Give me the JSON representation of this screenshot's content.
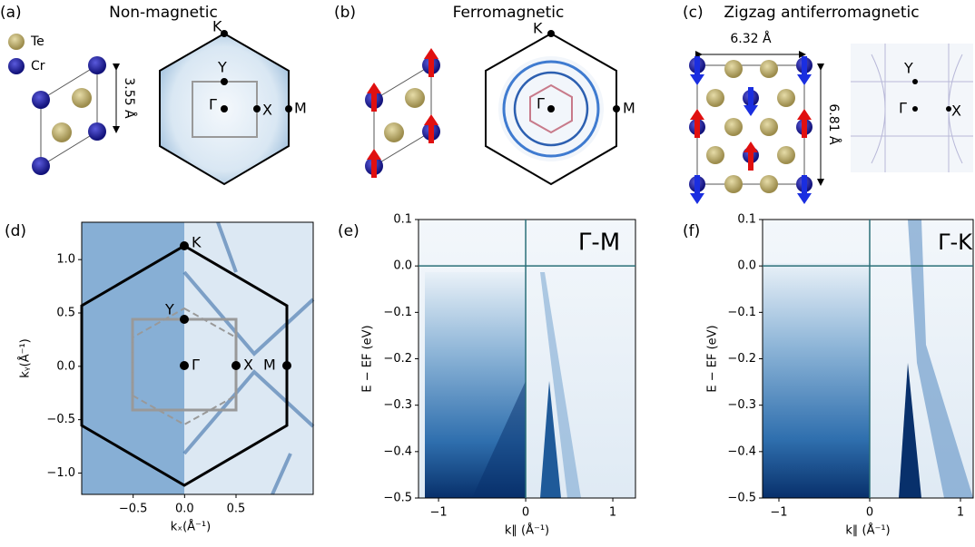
{
  "panels": {
    "a": {
      "label": "(a)",
      "title": "Non-magnetic",
      "legend": [
        "Te",
        "Cr"
      ],
      "dimension": "3.55 Å",
      "points": [
        "K",
        "Y",
        "Γ",
        "X",
        "M"
      ]
    },
    "b": {
      "label": "(b)",
      "title": "Ferromagnetic",
      "points": [
        "K",
        "Γ",
        "M"
      ]
    },
    "c": {
      "label": "(c)",
      "title": "Zigzag antiferromagnetic",
      "dimensions": [
        "6.32 Å",
        "6.81 Å"
      ],
      "points": [
        "Y",
        "Γ",
        "X"
      ]
    },
    "d": {
      "label": "(d)",
      "xlabel": "kₓ(Å⁻¹)",
      "ylabel": "kᵧ(Å⁻¹)",
      "xlim": [
        -1.0,
        1.25
      ],
      "ylim": [
        -1.2,
        1.35
      ],
      "xticks": [
        {
          "value": -0.5,
          "label": "−0.5"
        },
        {
          "value": 0,
          "label": "0.0"
        },
        0.5
      ],
      "yticks": [
        {
          "value": 1,
          "label": "1.0"
        },
        0.5,
        {
          "value": 0,
          "label": "0.0"
        },
        {
          "value": -0.5,
          "label": "−0.5"
        },
        {
          "value": -1,
          "label": "−1.0"
        }
      ],
      "points": [
        "K",
        "Y",
        "Γ",
        "X",
        "M"
      ]
    },
    "e": {
      "label": "(e)",
      "title": "Γ-M",
      "xlabel": "k∥ (Å⁻¹)",
      "ylabel": "E − EF (eV)",
      "xlim": [
        -1.23,
        1.26
      ],
      "ylim": [
        -0.5,
        0.1
      ],
      "xticks": [
        {
          "value": -1,
          "label": "−1"
        },
        0,
        1
      ],
      "yticks": [
        0.1,
        {
          "value": 0,
          "label": "0.0"
        },
        {
          "value": -0.1,
          "label": "−0.1"
        },
        {
          "value": -0.2,
          "label": "−0.2"
        },
        {
          "value": -0.3,
          "label": "−0.3"
        },
        {
          "value": -0.4,
          "label": "−0.4"
        },
        {
          "value": -0.5,
          "label": "−0.5"
        }
      ]
    },
    "f": {
      "label": "(f)",
      "title": "Γ-K",
      "xlabel": "k∥ (Å⁻¹)",
      "ylabel": "E − EF (eV)",
      "xlim": [
        -1.18,
        1.14
      ],
      "ylim": [
        -0.5,
        0.1
      ],
      "xticks": [
        {
          "value": -1,
          "label": "−1"
        },
        0,
        1
      ],
      "yticks": [
        0.1,
        {
          "value": 0,
          "label": "0.0"
        },
        {
          "value": -0.1,
          "label": "−0.1"
        },
        {
          "value": -0.2,
          "label": "−0.2"
        },
        {
          "value": -0.3,
          "label": "−0.3"
        },
        {
          "value": -0.4,
          "label": "−0.4"
        },
        {
          "value": -0.5,
          "label": "−0.5"
        }
      ]
    }
  }
}
